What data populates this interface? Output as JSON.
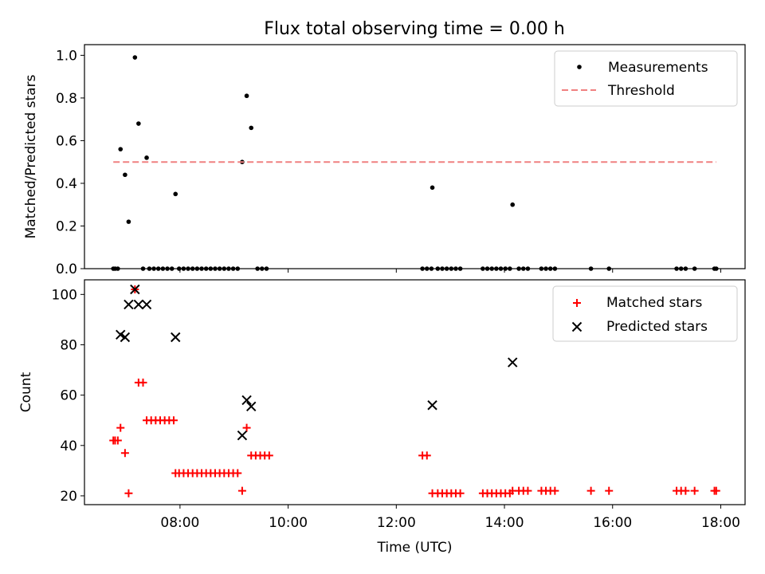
{
  "title": "Flux total observing time = 0.00 h",
  "colors": {
    "threshold": "#f08080",
    "matched": "#ff0000",
    "predicted": "#000000",
    "measurements": "#000000"
  },
  "chart_data": [
    {
      "type": "scatter",
      "ylabel": "Matched/Predicted stars",
      "xlabel": "",
      "ylim": [
        0,
        1.05
      ],
      "xlim": [
        "06:14",
        "18:27"
      ],
      "x_tick_labels_visible": false,
      "yticks": [
        "0.0",
        "0.2",
        "0.4",
        "0.6",
        "0.8",
        "1.0"
      ],
      "legend": {
        "position": "top-right",
        "entries": [
          "Measurements",
          "Threshold"
        ]
      },
      "series": [
        {
          "name": "Measurements",
          "marker": "dot",
          "points": [
            [
              "06:46",
              0
            ],
            [
              "06:48",
              0
            ],
            [
              "06:51",
              0
            ],
            [
              "06:54",
              0.56
            ],
            [
              "06:59",
              0.44
            ],
            [
              "07:03",
              0.22
            ],
            [
              "07:10",
              0.99
            ],
            [
              "07:14",
              0.68
            ],
            [
              "07:19",
              0
            ],
            [
              "07:23",
              0.52
            ],
            [
              "07:26",
              0
            ],
            [
              "07:31",
              0
            ],
            [
              "07:36",
              0
            ],
            [
              "07:41",
              0
            ],
            [
              "07:46",
              0
            ],
            [
              "07:51",
              0
            ],
            [
              "07:55",
              0.35
            ],
            [
              "07:59",
              0
            ],
            [
              "08:04",
              0
            ],
            [
              "08:09",
              0
            ],
            [
              "08:14",
              0
            ],
            [
              "08:19",
              0
            ],
            [
              "08:24",
              0
            ],
            [
              "08:29",
              0
            ],
            [
              "08:34",
              0
            ],
            [
              "08:39",
              0
            ],
            [
              "08:44",
              0
            ],
            [
              "08:49",
              0
            ],
            [
              "08:54",
              0
            ],
            [
              "08:59",
              0
            ],
            [
              "09:04",
              0
            ],
            [
              "09:09",
              0.5
            ],
            [
              "09:14",
              0.81
            ],
            [
              "09:19",
              0.66
            ],
            [
              "09:26",
              0
            ],
            [
              "09:31",
              0
            ],
            [
              "09:36",
              0
            ],
            [
              "12:29",
              0
            ],
            [
              "12:34",
              0
            ],
            [
              "12:39",
              0
            ],
            [
              "12:40",
              0.38
            ],
            [
              "12:46",
              0
            ],
            [
              "12:51",
              0
            ],
            [
              "12:56",
              0
            ],
            [
              "13:01",
              0
            ],
            [
              "13:06",
              0
            ],
            [
              "13:11",
              0
            ],
            [
              "13:36",
              0
            ],
            [
              "13:41",
              0
            ],
            [
              "13:46",
              0
            ],
            [
              "13:51",
              0
            ],
            [
              "13:56",
              0
            ],
            [
              "14:01",
              0
            ],
            [
              "14:06",
              0
            ],
            [
              "14:09",
              0.3
            ],
            [
              "14:16",
              0
            ],
            [
              "14:21",
              0
            ],
            [
              "14:26",
              0
            ],
            [
              "14:41",
              0
            ],
            [
              "14:46",
              0
            ],
            [
              "14:51",
              0
            ],
            [
              "14:56",
              0
            ],
            [
              "15:36",
              0
            ],
            [
              "15:56",
              0
            ],
            [
              "17:11",
              0
            ],
            [
              "17:16",
              0
            ],
            [
              "17:21",
              0
            ],
            [
              "17:31",
              0
            ],
            [
              "17:53",
              0
            ],
            [
              "17:55",
              0
            ]
          ]
        },
        {
          "name": "Threshold",
          "style": "dashed",
          "points": [
            [
              "06:46",
              0.5
            ],
            [
              "17:55",
              0.5
            ]
          ]
        }
      ]
    },
    {
      "type": "scatter",
      "xlabel": "Time (UTC)",
      "ylabel": "Count",
      "ylim": [
        16.5,
        105.8
      ],
      "xlim": [
        "06:14",
        "18:27"
      ],
      "xticks": [
        "08:00",
        "10:00",
        "12:00",
        "14:00",
        "16:00",
        "18:00"
      ],
      "yticks": [
        "20",
        "40",
        "60",
        "80",
        "100"
      ],
      "legend": {
        "position": "top-right",
        "entries": [
          "Matched stars",
          "Predicted stars"
        ]
      },
      "series": [
        {
          "name": "Matched stars",
          "marker": "plus",
          "points": [
            [
              "06:46",
              42
            ],
            [
              "06:48",
              42
            ],
            [
              "06:51",
              42
            ],
            [
              "06:54",
              47
            ],
            [
              "06:59",
              37
            ],
            [
              "07:03",
              21
            ],
            [
              "07:10",
              102
            ],
            [
              "07:14",
              65
            ],
            [
              "07:19",
              65
            ],
            [
              "07:23",
              50
            ],
            [
              "07:28",
              50
            ],
            [
              "07:33",
              50
            ],
            [
              "07:38",
              50
            ],
            [
              "07:43",
              50
            ],
            [
              "07:48",
              50
            ],
            [
              "07:53",
              50
            ],
            [
              "07:55",
              29
            ],
            [
              "07:59",
              29
            ],
            [
              "08:04",
              29
            ],
            [
              "08:09",
              29
            ],
            [
              "08:14",
              29
            ],
            [
              "08:19",
              29
            ],
            [
              "08:24",
              29
            ],
            [
              "08:29",
              29
            ],
            [
              "08:34",
              29
            ],
            [
              "08:39",
              29
            ],
            [
              "08:44",
              29
            ],
            [
              "08:49",
              29
            ],
            [
              "08:54",
              29
            ],
            [
              "08:59",
              29
            ],
            [
              "09:04",
              29
            ],
            [
              "09:09",
              22
            ],
            [
              "09:14",
              47
            ],
            [
              "09:19",
              36
            ],
            [
              "09:24",
              36
            ],
            [
              "09:29",
              36
            ],
            [
              "09:34",
              36
            ],
            [
              "09:39",
              36
            ],
            [
              "12:29",
              36
            ],
            [
              "12:34",
              36
            ],
            [
              "12:40",
              21
            ],
            [
              "12:46",
              21
            ],
            [
              "12:51",
              21
            ],
            [
              "12:56",
              21
            ],
            [
              "13:01",
              21
            ],
            [
              "13:06",
              21
            ],
            [
              "13:11",
              21
            ],
            [
              "13:36",
              21
            ],
            [
              "13:41",
              21
            ],
            [
              "13:46",
              21
            ],
            [
              "13:51",
              21
            ],
            [
              "13:56",
              21
            ],
            [
              "14:01",
              21
            ],
            [
              "14:06",
              21
            ],
            [
              "14:09",
              22
            ],
            [
              "14:16",
              22
            ],
            [
              "14:21",
              22
            ],
            [
              "14:26",
              22
            ],
            [
              "14:41",
              22
            ],
            [
              "14:46",
              22
            ],
            [
              "14:51",
              22
            ],
            [
              "14:56",
              22
            ],
            [
              "15:36",
              22
            ],
            [
              "15:56",
              22
            ],
            [
              "17:11",
              22
            ],
            [
              "17:16",
              22
            ],
            [
              "17:21",
              22
            ],
            [
              "17:31",
              22
            ],
            [
              "17:53",
              22
            ],
            [
              "17:55",
              22
            ]
          ]
        },
        {
          "name": "Predicted stars",
          "marker": "x",
          "points": [
            [
              "06:54",
              84
            ],
            [
              "06:59",
              83
            ],
            [
              "07:03",
              96
            ],
            [
              "07:10",
              102
            ],
            [
              "07:14",
              96
            ],
            [
              "07:23",
              96
            ],
            [
              "07:55",
              83
            ],
            [
              "09:09",
              44
            ],
            [
              "09:14",
              58
            ],
            [
              "09:19",
              55.5
            ],
            [
              "12:40",
              56
            ],
            [
              "14:09",
              73
            ]
          ]
        }
      ]
    }
  ]
}
